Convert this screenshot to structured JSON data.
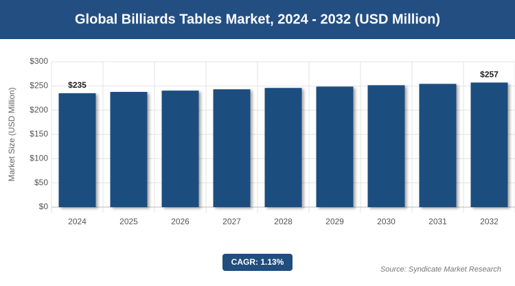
{
  "chart_data": {
    "type": "bar",
    "title": "Global Billiards Tables Market, 2024 - 2032 (USD Million)",
    "y_label": "Market Size (USD Million)",
    "categories": [
      "2024",
      "2025",
      "2026",
      "2027",
      "2028",
      "2029",
      "2030",
      "2031",
      "2032"
    ],
    "values": [
      235,
      237.7,
      240.4,
      243.1,
      245.9,
      248.7,
      251.5,
      254.3,
      257
    ],
    "value_labels": [
      "$235",
      null,
      null,
      null,
      null,
      null,
      null,
      null,
      "$257"
    ],
    "color": "#1f4e7f",
    "ylim": [
      0,
      300
    ],
    "yticks": [
      {
        "value": 0,
        "label": "$0"
      },
      {
        "value": 50,
        "label": "$50"
      },
      {
        "value": 100,
        "label": "$100"
      },
      {
        "value": 150,
        "label": "$150"
      },
      {
        "value": 200,
        "label": "$200"
      },
      {
        "value": 250,
        "label": "$250"
      },
      {
        "value": 300,
        "label": "$300"
      }
    ],
    "grid": true,
    "cagr": "CAGR: 1.13%",
    "source": "Source: Syndicate Market Research"
  }
}
